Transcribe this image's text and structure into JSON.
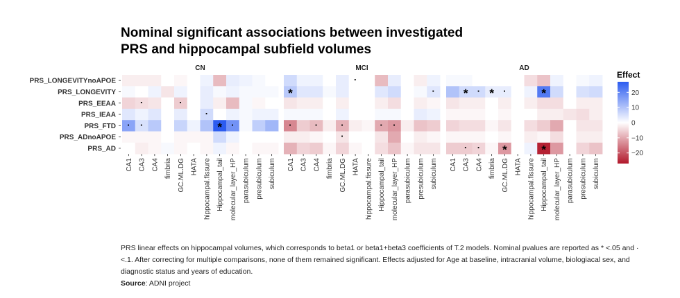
{
  "chart_data": {
    "type": "heatmap",
    "title_lines": [
      "Nominal significant associations between investigated",
      "PRS and hippocampal subfield volumes"
    ],
    "panels": [
      "CN",
      "MCI",
      "AD"
    ],
    "rows": [
      "PRS_LONGEVITYnoAPOE",
      "PRS_LONGEVITY",
      "PRS_EEAA",
      "PRS_IEAA",
      "PRS_FTD",
      "PRS_ADnoAPOE",
      "PRS_AD"
    ],
    "columns": [
      "CA1",
      "CA3",
      "CA4",
      "fimbria",
      "GC.ML.DG",
      "HATA",
      "hippocampal.fissure",
      "Hippocampal_tail",
      "molecular_layer_HP",
      "parasubiculum",
      "presubiculum",
      "subiculum"
    ],
    "values": {
      "CN": [
        [
          -2,
          -2,
          -2,
          0,
          -1,
          0,
          2,
          -8,
          3,
          2,
          1,
          0
        ],
        [
          1,
          0,
          2,
          -3,
          2,
          0,
          3,
          1,
          2,
          1,
          1,
          1
        ],
        [
          -5,
          -4,
          -3,
          0,
          -6,
          0,
          3,
          -2,
          -8,
          1,
          -1,
          0
        ],
        [
          4,
          2,
          4,
          0,
          3,
          0,
          6,
          0,
          2,
          1,
          2,
          2
        ],
        [
          15,
          5,
          9,
          0,
          7,
          2,
          10,
          27,
          18,
          1,
          8,
          12
        ],
        [
          -1,
          -1,
          -1,
          0,
          -1,
          -1,
          -1,
          6,
          2,
          0,
          0,
          0
        ],
        [
          0,
          -2,
          -1,
          1,
          -1,
          0,
          -1,
          2,
          -1,
          0,
          -1,
          -1
        ]
      ],
      "MCI": [
        [
          6,
          2,
          2,
          0,
          3,
          0,
          0,
          -8,
          3,
          0,
          -2,
          2
        ],
        [
          9,
          4,
          4,
          1,
          3,
          0,
          0,
          4,
          6,
          0,
          1,
          4
        ],
        [
          -3,
          -2,
          -2,
          0,
          -2,
          0,
          0,
          -2,
          -4,
          0,
          -2,
          -1
        ],
        [
          1,
          1,
          1,
          0,
          2,
          0,
          0,
          1,
          1,
          0,
          3,
          2
        ],
        [
          -14,
          -6,
          -8,
          -2,
          -9,
          -2,
          -1,
          -10,
          -12,
          -2,
          -7,
          -6
        ],
        [
          -2,
          -2,
          -1,
          0,
          -3,
          0,
          0,
          -3,
          -10,
          0,
          -2,
          -1
        ],
        [
          -9,
          -5,
          -6,
          -1,
          -5,
          -1,
          0,
          -4,
          -7,
          -1,
          -3,
          -3
        ]
      ],
      "AD": [
        [
          1,
          1,
          0,
          0,
          0,
          0,
          -4,
          -7,
          2,
          0,
          1,
          2
        ],
        [
          10,
          6,
          6,
          3,
          3,
          0,
          2,
          22,
          6,
          0,
          5,
          6
        ],
        [
          -3,
          -2,
          -2,
          0,
          -2,
          0,
          -2,
          -4,
          -4,
          0,
          -2,
          -2
        ],
        [
          -1,
          -1,
          -1,
          0,
          -1,
          0,
          0,
          -2,
          -2,
          -3,
          -4,
          -2
        ],
        [
          -5,
          -4,
          -4,
          -1,
          -3,
          0,
          -4,
          -6,
          -10,
          0,
          -3,
          -3
        ],
        [
          -1,
          -1,
          -1,
          0,
          -1,
          0,
          -2,
          -1,
          -4,
          0,
          -2,
          -2
        ],
        [
          -6,
          -6,
          -5,
          -1,
          -12,
          0,
          2,
          -26,
          -12,
          0,
          -5,
          -7
        ]
      ]
    },
    "annotations": [
      {
        "panel": "CN",
        "row": "PRS_EEAA",
        "column": "CA3",
        "mark": "·"
      },
      {
        "panel": "CN",
        "row": "PRS_EEAA",
        "column": "GC.ML.DG",
        "mark": "·"
      },
      {
        "panel": "CN",
        "row": "PRS_IEAA",
        "column": "hippocampal.fissure",
        "mark": "·"
      },
      {
        "panel": "CN",
        "row": "PRS_FTD",
        "column": "CA1",
        "mark": "·"
      },
      {
        "panel": "CN",
        "row": "PRS_FTD",
        "column": "CA3",
        "mark": "·"
      },
      {
        "panel": "CN",
        "row": "PRS_FTD",
        "column": "Hippocampal_tail",
        "mark": "*"
      },
      {
        "panel": "CN",
        "row": "PRS_FTD",
        "column": "molecular_layer_HP",
        "mark": "·"
      },
      {
        "panel": "MCI",
        "row": "PRS_LONGEVITYnoAPOE",
        "column": "HATA",
        "mark": "·"
      },
      {
        "panel": "MCI",
        "row": "PRS_LONGEVITY",
        "column": "CA1",
        "mark": "*"
      },
      {
        "panel": "MCI",
        "row": "PRS_LONGEVITY",
        "column": "subiculum",
        "mark": "·"
      },
      {
        "panel": "MCI",
        "row": "PRS_FTD",
        "column": "CA1",
        "mark": "·"
      },
      {
        "panel": "MCI",
        "row": "PRS_FTD",
        "column": "CA4",
        "mark": "·"
      },
      {
        "panel": "MCI",
        "row": "PRS_FTD",
        "column": "GC.ML.DG",
        "mark": "·"
      },
      {
        "panel": "MCI",
        "row": "PRS_FTD",
        "column": "Hippocampal_tail",
        "mark": "·"
      },
      {
        "panel": "MCI",
        "row": "PRS_FTD",
        "column": "molecular_layer_HP",
        "mark": "·"
      },
      {
        "panel": "MCI",
        "row": "PRS_ADnoAPOE",
        "column": "GC.ML.DG",
        "mark": "·"
      },
      {
        "panel": "AD",
        "row": "PRS_LONGEVITY",
        "column": "CA3",
        "mark": "*"
      },
      {
        "panel": "AD",
        "row": "PRS_LONGEVITY",
        "column": "CA4",
        "mark": "·"
      },
      {
        "panel": "AD",
        "row": "PRS_LONGEVITY",
        "column": "fimbria",
        "mark": "*"
      },
      {
        "panel": "AD",
        "row": "PRS_LONGEVITY",
        "column": "GC.ML.DG",
        "mark": "·"
      },
      {
        "panel": "AD",
        "row": "PRS_LONGEVITY",
        "column": "Hippocampal_tail",
        "mark": "*"
      },
      {
        "panel": "AD",
        "row": "PRS_AD",
        "column": "CA3",
        "mark": "·"
      },
      {
        "panel": "AD",
        "row": "PRS_AD",
        "column": "CA4",
        "mark": "·"
      },
      {
        "panel": "AD",
        "row": "PRS_AD",
        "column": "GC.ML.DG",
        "mark": "*"
      },
      {
        "panel": "AD",
        "row": "PRS_AD",
        "column": "Hippocampal_tail",
        "mark": "*"
      }
    ],
    "legend": {
      "title": "Effect",
      "ticks": [
        20,
        10,
        0,
        -10,
        -20
      ],
      "tick_labels": [
        "20",
        "10",
        "0",
        "−10",
        "−20"
      ],
      "range": [
        -27,
        27
      ],
      "colors": {
        "low": "#b2182b",
        "mid": "#ffffff",
        "high": "#2c5cf0"
      },
      "placement": "right"
    }
  },
  "caption": {
    "text": "PRS linear effects on hippocampal volumes, which corresponds to beta1 or beta1+beta3 coefficients of T.2 models. Nominal pvalues are reported as * <.05 and · <.1. After correcting for multiple comparisons, none of them remained significant. Effects adjusted for Age at baseline, intracranial volume, biologiacal sex, and diagnostic status and years of education.",
    "source_label": "Source",
    "source_text": ": ADNI project"
  }
}
